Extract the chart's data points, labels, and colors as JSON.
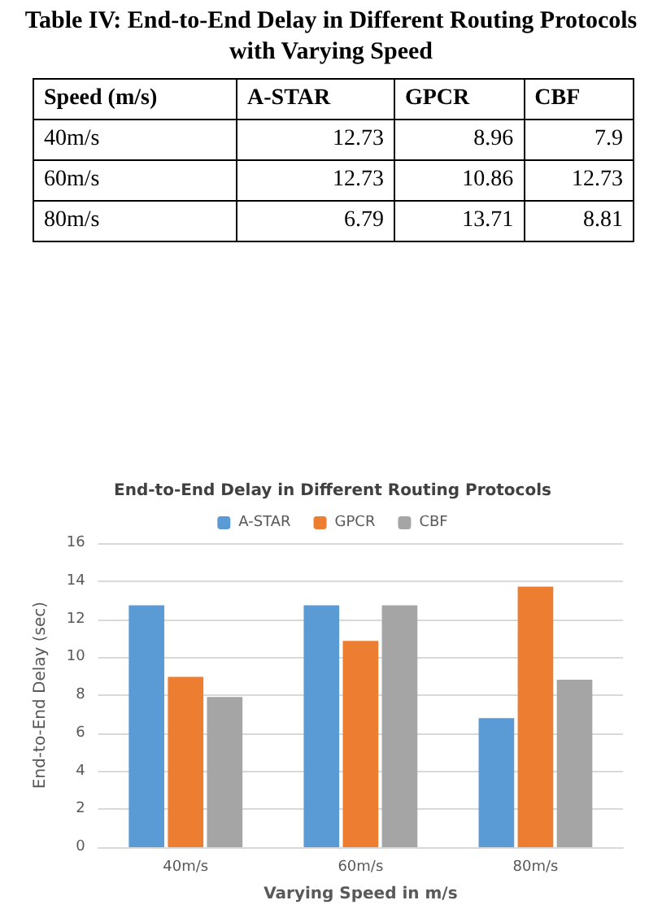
{
  "chart_data": [
    {
      "type": "other",
      "title": "Table IV:   End-to-End Delay in Different Routing Protocols with Varying Speed",
      "annotations": [
        "Speed (m/s)"
      ],
      "categories": [
        "40m/s",
        "60m/s",
        "80m/s"
      ],
      "series": [
        {
          "name": "A-STAR",
          "values": [
            12.73,
            12.73,
            6.79
          ]
        },
        {
          "name": "GPCR",
          "values": [
            8.96,
            10.86,
            13.71
          ]
        },
        {
          "name": "CBF",
          "values": [
            7.9,
            12.73,
            8.81
          ]
        }
      ],
      "data_labels": true
    },
    {
      "type": "bar",
      "title": "End-to-End Delay in Different Routing Protocols",
      "xlabel": "Varying Speed in m/s",
      "ylabel": "End-to-End Delay (sec)",
      "categories": [
        "40m/s",
        "60m/s",
        "80m/s"
      ],
      "series": [
        {
          "name": "A-STAR",
          "color": "#5b9bd5",
          "values": [
            12.73,
            12.73,
            6.79
          ]
        },
        {
          "name": "GPCR",
          "color": "#ed7d31",
          "values": [
            8.96,
            10.86,
            13.71
          ]
        },
        {
          "name": "CBF",
          "color": "#a5a5a5",
          "values": [
            7.9,
            12.73,
            8.81
          ]
        }
      ],
      "ylim": [
        0,
        16
      ],
      "yticks": [
        0,
        2,
        4,
        6,
        8,
        10,
        12,
        14,
        16
      ],
      "grid": "y",
      "legend": "top"
    }
  ]
}
